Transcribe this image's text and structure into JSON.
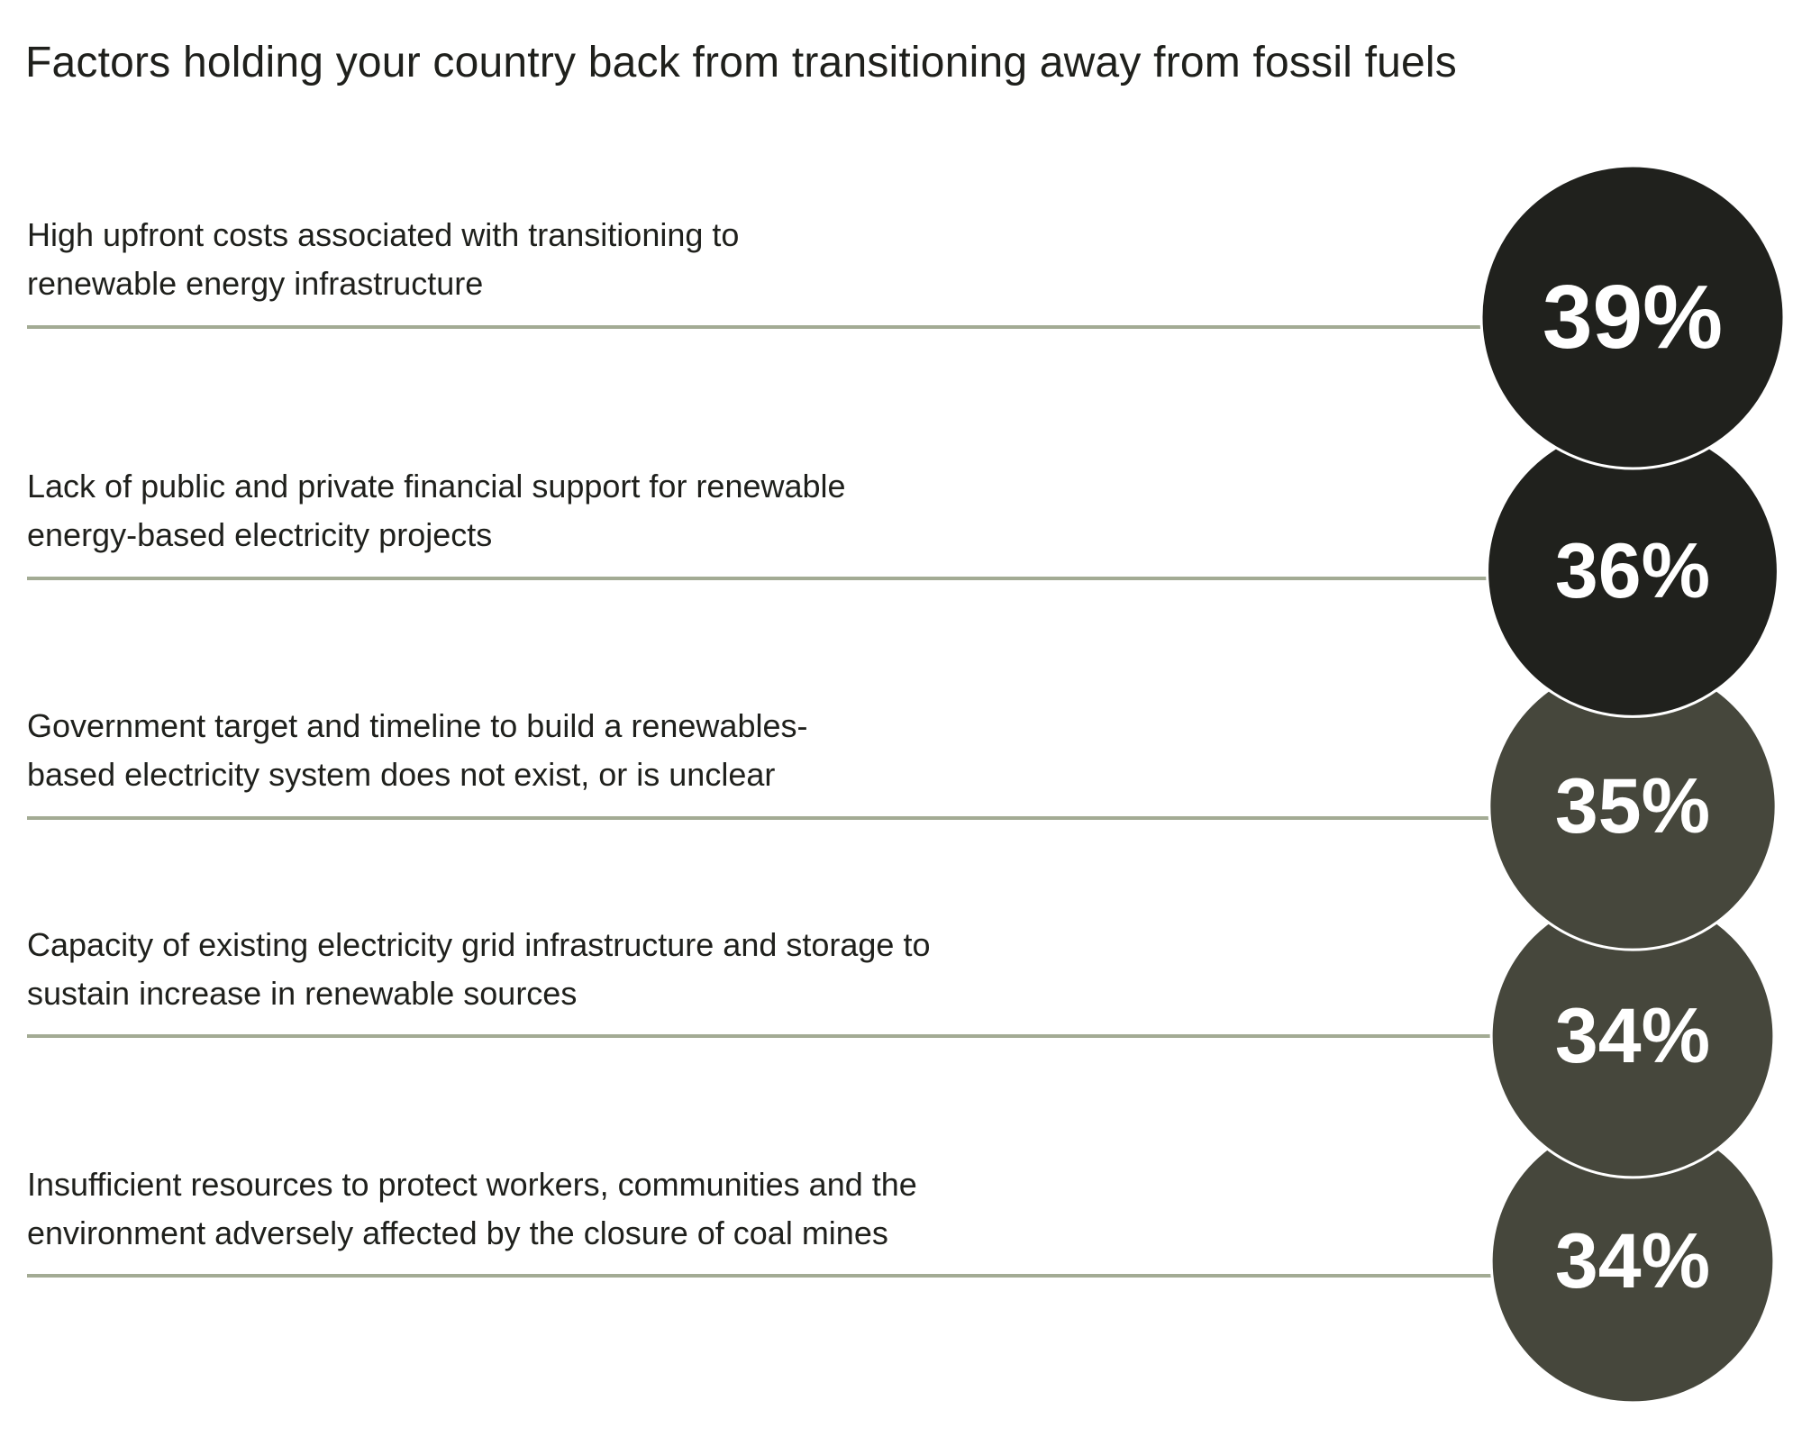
{
  "chart_data": {
    "type": "bar",
    "title": "Factors holding your country back from transitioning away from fossil fuels",
    "unit": "%",
    "categories": [
      "High upfront costs associated with transitioning to\nrenewable energy infrastructure",
      "Lack of public and private financial support for renewable\nenergy-based electricity projects",
      "Government target and timeline to build a renewables-\nbased electricity system does not exist, or is unclear",
      "Capacity of existing electricity grid infrastructure and storage to\nsustain increase in renewable sources",
      "Insufficient resources to protect workers, communities and the\nenvironment adversely affected by the closure of coal mines"
    ],
    "values": [
      39,
      36,
      35,
      34,
      34
    ],
    "value_labels": [
      "39%",
      "36%",
      "35%",
      "34%",
      "34%"
    ],
    "colors": {
      "circle_dark": "#20211d",
      "circle_mid": "#46473c",
      "line": "#a3ab94",
      "value_text": "#ffffff",
      "text": "#1f201c"
    }
  }
}
